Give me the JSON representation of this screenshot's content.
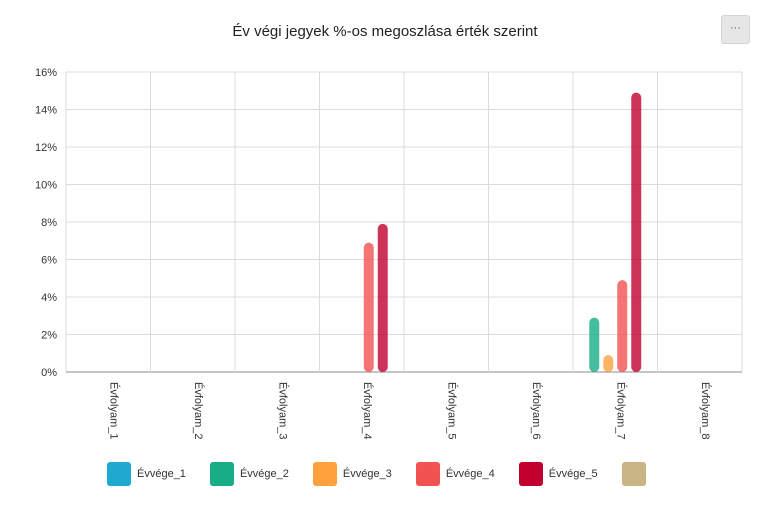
{
  "header": {
    "title": "Év végi jegyek %-os megoszlása érték szerint",
    "menu_label": "···"
  },
  "chart_data": {
    "type": "bar",
    "title": "Év végi jegyek %-os megoszlása érték szerint",
    "xlabel": "",
    "ylabel": "",
    "categories": [
      "Évfolyam_1",
      "Évfolyam_2",
      "Évfolyam_3",
      "Évfolyam_4",
      "Évfolyam_5",
      "Évfolyam_6",
      "Évfolyam_7",
      "Évfolyam_8"
    ],
    "y_ticks": [
      "0%",
      "2%",
      "4%",
      "6%",
      "8%",
      "10%",
      "12%",
      "14%",
      "16%"
    ],
    "ylim": [
      0,
      16
    ],
    "grid": true,
    "legend_position": "bottom",
    "series": [
      {
        "name": "Évvége_1",
        "color": "#1fa8d0",
        "values": [
          0,
          0,
          0,
          0,
          0,
          0,
          0,
          0
        ]
      },
      {
        "name": "Évvége_2",
        "color": "#17ad86",
        "values": [
          0,
          0,
          0,
          0,
          0,
          0,
          2.9,
          0
        ]
      },
      {
        "name": "Évvége_3",
        "color": "#ffa23e",
        "values": [
          0,
          0,
          0,
          0,
          0,
          0,
          0.9,
          0
        ]
      },
      {
        "name": "Évvége_4",
        "color": "#f25252",
        "values": [
          0,
          0,
          0,
          6.9,
          0,
          0,
          4.9,
          0
        ]
      },
      {
        "name": "Évvége_5",
        "color": "#c2002f",
        "values": [
          0,
          0,
          0,
          7.9,
          0,
          0,
          14.9,
          0
        ]
      },
      {
        "name": "",
        "color": "#c9b483",
        "values": [
          0,
          0,
          0,
          0,
          0,
          0,
          0,
          0
        ]
      }
    ]
  }
}
